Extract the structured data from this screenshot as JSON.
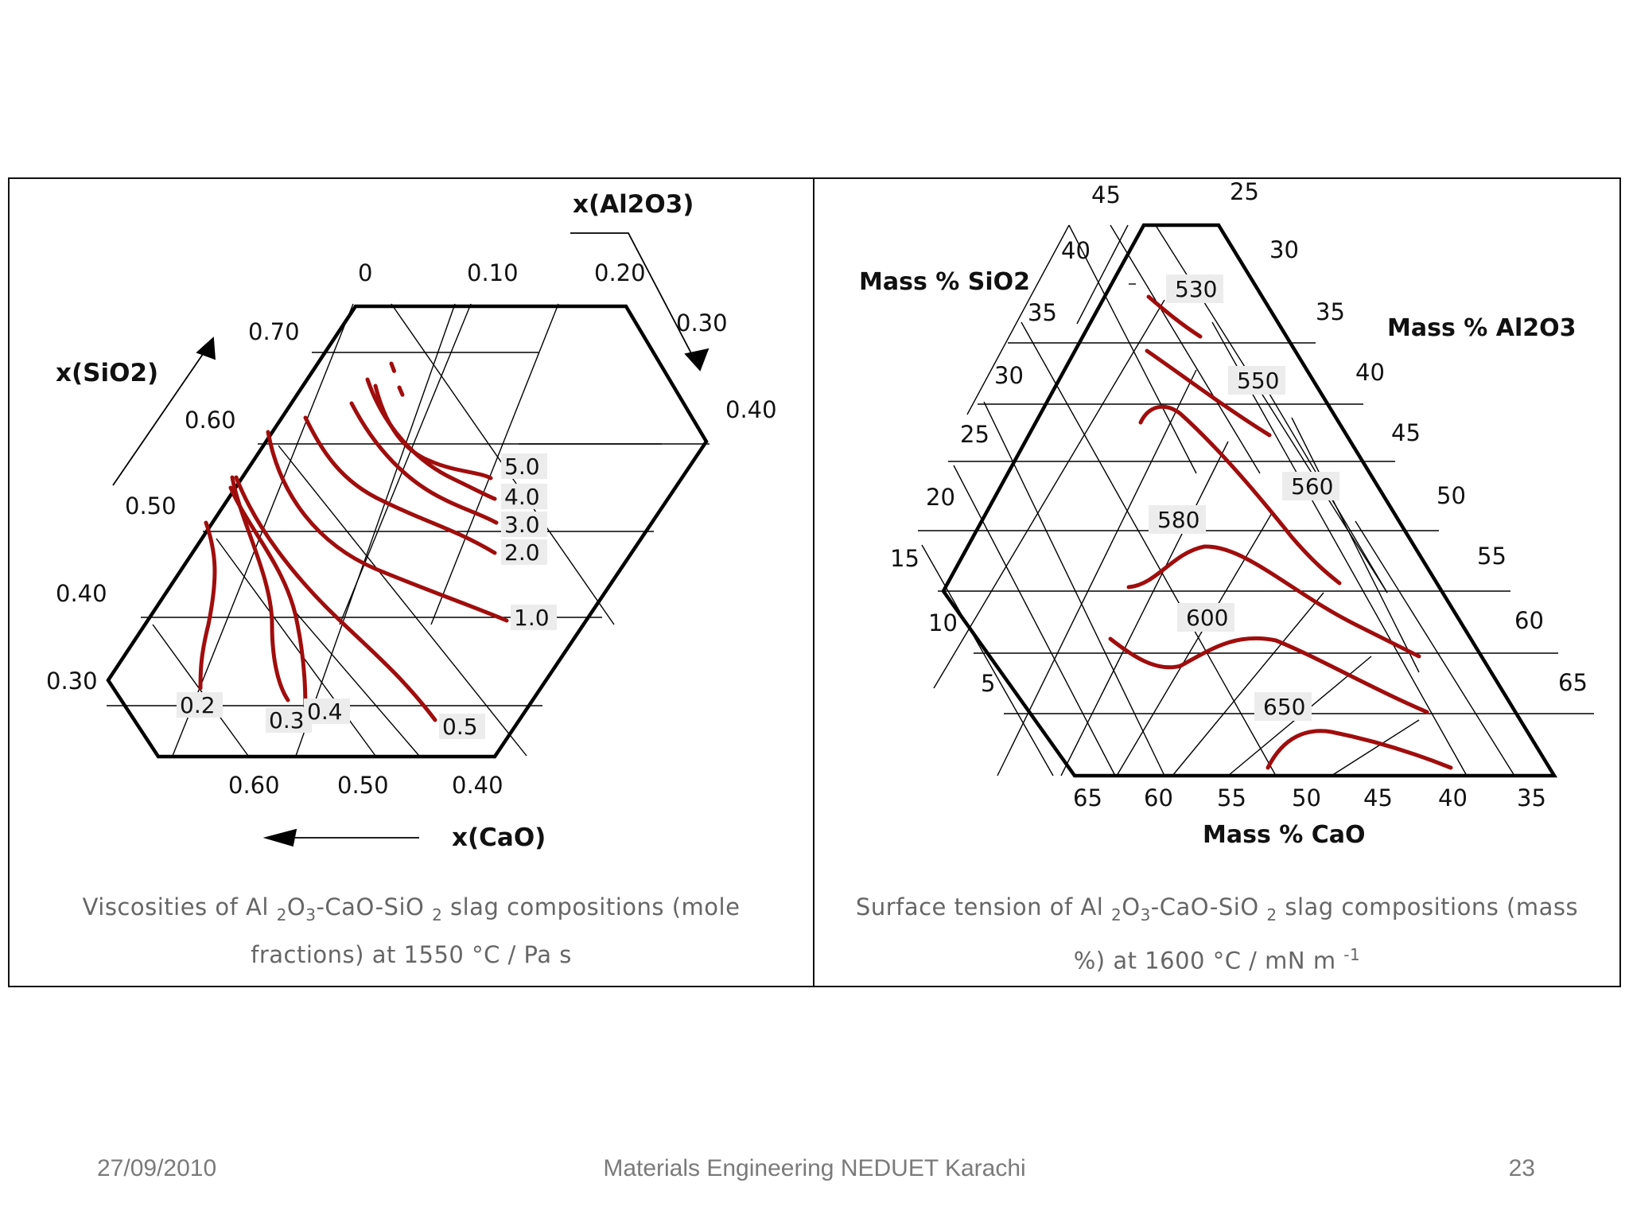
{
  "slide": {
    "footer_date": "27/09/2010",
    "footer_center": "Materials Engineering NEDUET Karachi",
    "page_number": "23"
  },
  "colors": {
    "contour": "#a00d0d",
    "grid": "#000000",
    "label_box": "#ececec",
    "caption": "#666666"
  },
  "left": {
    "axis_al2o3": "x(Al2O3)",
    "axis_sio2": "x(SiO2)",
    "axis_cao": "x(CaO)",
    "al2o3_ticks": [
      "0",
      "0.10",
      "0.20",
      "0.30",
      "0.40"
    ],
    "sio2_ticks": [
      "0.70",
      "0.60",
      "0.50",
      "0.40",
      "0.30"
    ],
    "cao_ticks": [
      "0.60",
      "0.50",
      "0.40"
    ],
    "contour_labels": [
      "5.0",
      "4.0",
      "3.0",
      "2.0",
      "1.0",
      "0.5",
      "0.2",
      "0.3",
      "0.4"
    ],
    "caption": {
      "p1": "Viscosities of Al ",
      "s1": "2",
      "p2": "O",
      "s2": "3",
      "p3": "-CaO-SiO ",
      "s3": "2",
      "p4": " slag compositions (mole fractions) at 1550 °C / Pa s"
    }
  },
  "right": {
    "axis_sio2": "Mass % SiO2",
    "axis_al2o3": "Mass % Al2O3",
    "axis_cao": "Mass % CaO",
    "sio2_ticks": [
      "45",
      "40",
      "35",
      "30",
      "25",
      "20",
      "15",
      "10",
      "5"
    ],
    "al2o3_ticks": [
      "25",
      "30",
      "35",
      "40",
      "45",
      "50",
      "55",
      "60",
      "65"
    ],
    "cao_ticks": [
      "65",
      "60",
      "55",
      "50",
      "45",
      "40",
      "35"
    ],
    "contour_labels": [
      "530",
      "550",
      "560",
      "580",
      "600",
      "650"
    ],
    "caption": {
      "p1": "Surface tension of Al ",
      "s1": "2",
      "p2": "O",
      "s2": "3",
      "p3": "-CaO-SiO ",
      "s3": "2",
      "p4": " slag compositions (mass %) at 1600 °C / mN m ",
      "sup": "-1"
    }
  }
}
